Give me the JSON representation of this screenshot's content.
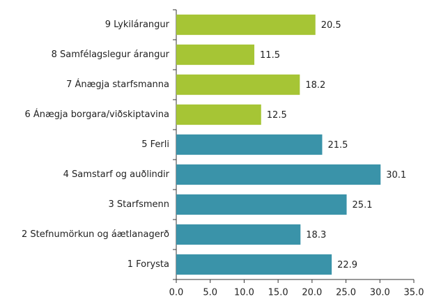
{
  "chart_data": {
    "type": "barh",
    "categories": [
      "9 Lykilárangur",
      "8 Samfélagslegur árangur",
      "7 Ánægja starfsmanna",
      "6 Ánægja borgara/viðskiptavina",
      "5 Ferli",
      "4 Samstarf og auðlindir",
      "3 Starfsmenn",
      "2 Stefnumörkun og áætlanagerð",
      "1 Forysta"
    ],
    "values": [
      20.5,
      11.5,
      18.2,
      12.5,
      21.5,
      30.1,
      25.1,
      18.3,
      22.9
    ],
    "colors": [
      "#a6c535",
      "#a6c535",
      "#a6c535",
      "#a6c535",
      "#3a93a9",
      "#3a93a9",
      "#3a93a9",
      "#3a93a9",
      "#3a93a9"
    ],
    "xlim": [
      0,
      35
    ],
    "xticks": [
      {
        "value": 0,
        "label": "0.0"
      },
      {
        "value": 5,
        "label": "5.0"
      },
      {
        "value": 10,
        "label": "10.0"
      },
      {
        "value": 15,
        "label": "15.0"
      },
      {
        "value": 20,
        "label": "20.0"
      },
      {
        "value": 25,
        "label": "25.0"
      },
      {
        "value": 30,
        "label": "30.0"
      },
      {
        "value": 35,
        "label": "35.0"
      }
    ],
    "grid": false
  }
}
